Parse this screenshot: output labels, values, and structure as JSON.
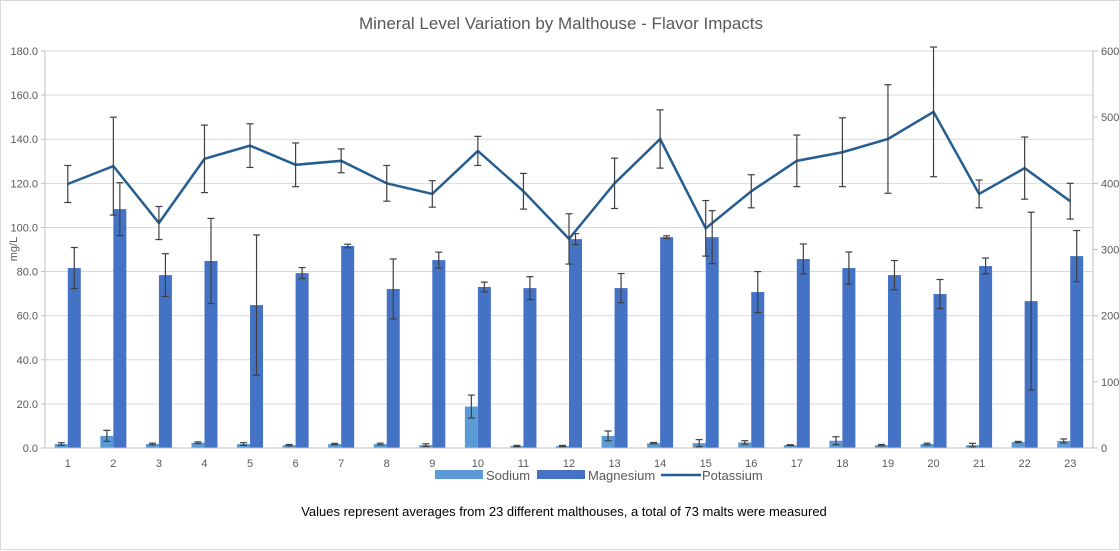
{
  "chart_data": {
    "type": "bar",
    "title": "Mineral Level Variation by Malthouse - Flavor Impacts",
    "xlabel": "",
    "ylabel": "mg/L",
    "y2label": "",
    "ylim": [
      0,
      180
    ],
    "y2lim": [
      0,
      600
    ],
    "yticks": [
      "0.0",
      "20.0",
      "40.0",
      "60.0",
      "80.0",
      "100.0",
      "120.0",
      "140.0",
      "160.0",
      "180.0"
    ],
    "y2ticks": [
      "0",
      "100",
      "200",
      "300",
      "400",
      "500",
      "600"
    ],
    "categories": [
      "1",
      "2",
      "3",
      "4",
      "5",
      "6",
      "7",
      "8",
      "9",
      "10",
      "11",
      "12",
      "13",
      "14",
      "15",
      "16",
      "17",
      "18",
      "19",
      "20",
      "21",
      "22",
      "23"
    ],
    "grid": true,
    "legend_position": "bottom",
    "series": [
      {
        "name": "Sodium",
        "kind": "bar",
        "axis": "left",
        "color": "#5B9BD5",
        "values": [
          1.8,
          5.5,
          1.8,
          2.4,
          1.8,
          1.3,
          1.8,
          1.8,
          1.3,
          18.8,
          0.9,
          0.9,
          5.5,
          2.2,
          2.2,
          2.5,
          1.3,
          3.3,
          1.3,
          1.8,
          1.3,
          2.7,
          3.2
        ],
        "errors": [
          0.6,
          2.5,
          0.4,
          0.4,
          0.6,
          0.3,
          0.3,
          0.4,
          0.6,
          5.2,
          0.3,
          0.3,
          2.2,
          0.3,
          1.6,
          0.8,
          0.2,
          1.8,
          0.3,
          0.4,
          0.8,
          0.3,
          0.9
        ]
      },
      {
        "name": "Magnesium",
        "kind": "bar",
        "axis": "left",
        "color": "#4472C4",
        "values": [
          81.6,
          108.3,
          78.4,
          84.8,
          64.8,
          79.3,
          91.6,
          72.1,
          85.2,
          73.0,
          72.5,
          94.7,
          72.5,
          95.6,
          95.6,
          70.7,
          85.7,
          81.6,
          78.4,
          69.8,
          82.5,
          66.6,
          87.0
        ],
        "errors": [
          9.3,
          12.0,
          9.7,
          19.3,
          31.8,
          2.5,
          0.8,
          13.6,
          3.6,
          2.2,
          5.2,
          2.5,
          6.6,
          0.6,
          12.0,
          9.3,
          6.8,
          7.3,
          6.6,
          6.6,
          3.6,
          40.3,
          11.6
        ]
      },
      {
        "name": "Potassium",
        "kind": "line",
        "axis": "right",
        "color": "#255E91",
        "values": [
          399,
          426,
          340,
          437,
          457,
          428,
          434,
          400,
          384,
          449,
          388,
          316,
          400,
          467,
          332,
          388,
          434,
          447,
          467,
          508,
          384,
          423,
          373
        ],
        "errors": [
          28,
          74,
          25,
          51,
          33,
          33,
          18,
          27,
          20,
          22,
          27,
          38,
          38,
          44,
          42,
          25,
          39,
          52,
          82,
          98,
          21,
          47,
          27
        ]
      }
    ],
    "annotations": [
      "Values represent averages from 23 different malthouses, a total of 73 malts were measured"
    ]
  },
  "legend": {
    "items": [
      "Sodium",
      "Magnesium",
      "Potassium"
    ]
  },
  "footnote": "Values represent averages from 23 different malthouses, a total of 73 malts were measured",
  "colors": {
    "grid": "#D9D9D9",
    "axis": "#BFBFBF",
    "error_bar": "#404040",
    "text": "#595959"
  }
}
